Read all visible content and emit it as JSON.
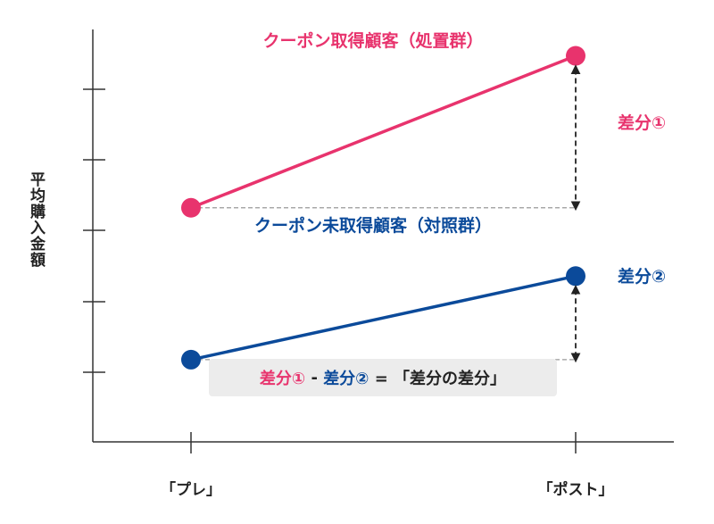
{
  "chart_data": {
    "type": "line",
    "categories": [
      "「プレ」",
      "「ポスト」"
    ],
    "ylabel": "平均購入金額",
    "xlabel": "",
    "grid": false,
    "series": [
      {
        "name": "クーポン取得顧客（処置群）",
        "values": [
          5.5,
          9.5
        ],
        "color": "#e8336d"
      },
      {
        "name": "クーポン未取得顧客（対照群）",
        "values": [
          1.5,
          3.7
        ],
        "color": "#0b4a9a"
      }
    ],
    "ylim": [
      -0.5,
      10.5
    ],
    "annotations": {
      "diff1": "差分①",
      "diff2": "差分②"
    },
    "formula": {
      "part1": "差分①",
      "minus": " - ",
      "part2": "差分②",
      "equals": " = 「差分の差分」"
    }
  }
}
